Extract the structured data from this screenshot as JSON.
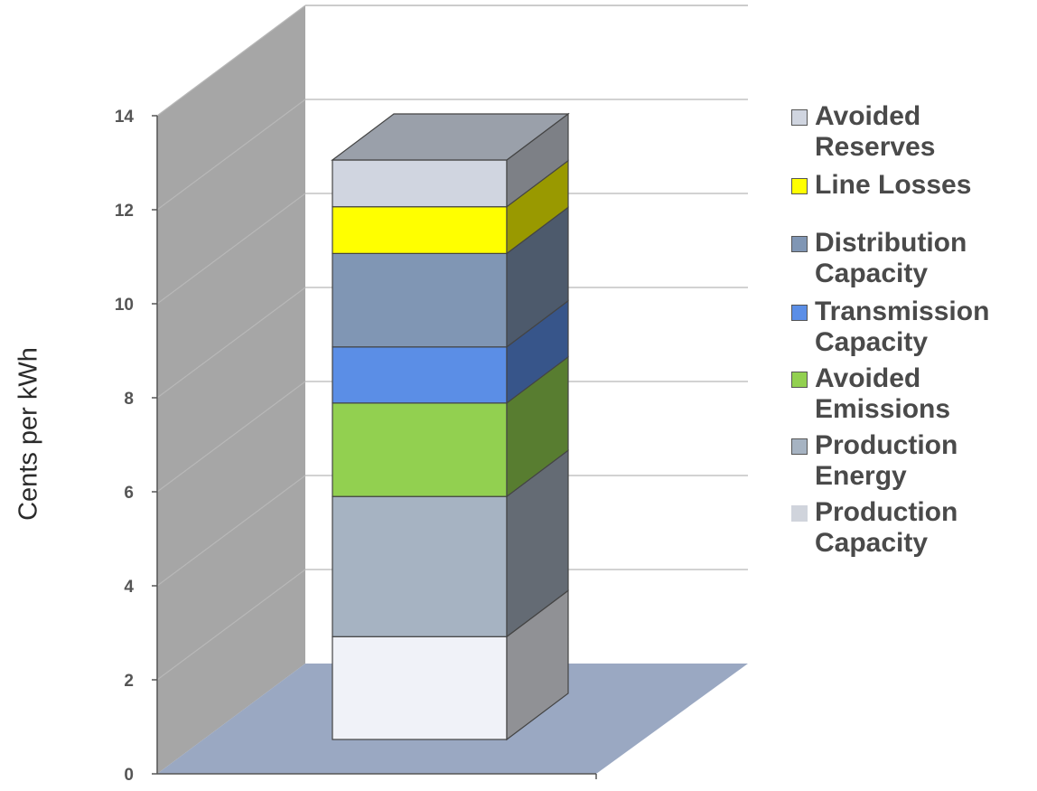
{
  "chart_data": {
    "type": "bar",
    "stacked": true,
    "three_d": true,
    "title": "",
    "xlabel": "",
    "ylabel": "Cents per kWh",
    "ylim": [
      0,
      14
    ],
    "yticks": [
      0,
      2,
      4,
      6,
      8,
      10,
      12,
      14
    ],
    "grid": true,
    "legend_position": "right",
    "categories": [
      ""
    ],
    "series": [
      {
        "name": "Production Capacity",
        "values": [
          2.2
        ],
        "color": "#f0f2f8"
      },
      {
        "name": "Production Energy",
        "values": [
          3.0
        ],
        "color": "#a6b3c2"
      },
      {
        "name": "Avoided Emissions",
        "values": [
          2.0
        ],
        "color": "#92d050"
      },
      {
        "name": "Transmission Capacity",
        "values": [
          1.2
        ],
        "color": "#5b8ee6"
      },
      {
        "name": "Distribution Capacity",
        "values": [
          2.0
        ],
        "color": "#8096b4"
      },
      {
        "name": "Line Losses",
        "values": [
          1.0
        ],
        "color": "#ffff00"
      },
      {
        "name": "Avoided Reserves",
        "values": [
          1.0
        ],
        "color": "#d0d5e0"
      }
    ],
    "legend_order": [
      "Avoided Reserves",
      "Line Losses",
      "Distribution Capacity",
      "Transmission Capacity",
      "Avoided Emissions",
      "Production Energy",
      "Production Capacity"
    ],
    "legend_labels": {
      "Avoided Reserves": "Avoided\nReserves",
      "Line Losses": "Line Losses",
      "Distribution Capacity": "Distribution\nCapacity",
      "Transmission Capacity": "Transmission\nCapacity",
      "Avoided Emissions": "Avoided\nEmissions",
      "Production Energy": "Production\nEnergy",
      "Production Capacity": "Production\nCapacity"
    },
    "colors": {
      "wall_left": "#a6a6a6",
      "floor": "#9aa8c2",
      "gridline": "#b8b8b8",
      "top_face": "#9aa0aa"
    }
  }
}
